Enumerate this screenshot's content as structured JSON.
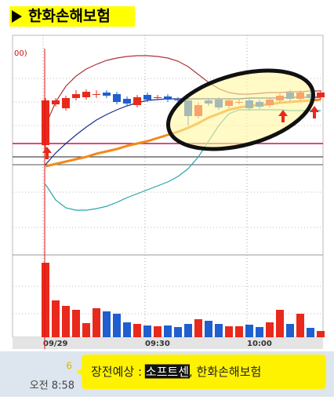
{
  "header": {
    "title": "한화손해보험"
  },
  "chart_data": {
    "type": "candlestick",
    "indicator_label": "00)",
    "categories": [
      "09/29",
      null,
      null,
      null,
      null,
      null,
      null,
      null,
      null,
      null,
      "09:30",
      null,
      null,
      null,
      null,
      null,
      null,
      null,
      null,
      null,
      "10:00",
      null,
      null,
      null,
      null,
      null,
      null,
      null
    ],
    "open": [
      135,
      187,
      182,
      195,
      196,
      200,
      202,
      200,
      194,
      186,
      199,
      196,
      197,
      193,
      192,
      172,
      192,
      193,
      185,
      190,
      192,
      190,
      186,
      192,
      202,
      194,
      200,
      196
    ],
    "high": [
      195,
      195,
      198,
      205,
      206,
      205,
      205,
      203,
      197,
      199,
      202,
      199,
      200,
      196,
      195,
      189,
      195,
      196,
      195,
      193,
      195,
      193,
      196,
      201,
      205,
      205,
      203,
      205
    ],
    "low": [
      130,
      184,
      179,
      192,
      193,
      195,
      195,
      187,
      185,
      183,
      190,
      193,
      190,
      189,
      160,
      169,
      185,
      180,
      182,
      187,
      179,
      181,
      183,
      189,
      191,
      191,
      192,
      193
    ],
    "close": [
      192,
      192,
      195,
      200,
      203,
      200,
      198,
      190,
      188,
      196,
      193,
      196,
      193,
      192,
      172,
      186,
      188,
      183,
      192,
      190,
      182,
      184,
      193,
      198,
      194,
      202,
      195,
      202
    ],
    "volume": [
      95,
      47,
      40,
      35,
      18,
      37,
      33,
      30,
      19,
      17,
      15,
      14,
      15,
      13,
      17,
      23,
      21,
      17,
      14,
      14,
      16,
      13,
      19,
      35,
      17,
      30,
      12,
      8
    ],
    "up_color": "#e8291b",
    "down_color": "#1f5fcf",
    "ylim": [
      0,
      260
    ],
    "volume_lim": [
      0,
      100
    ],
    "series": [
      {
        "color": "#f08a1c",
        "values": [
          108,
          111,
          114,
          117,
          120,
          124,
          127,
          130,
          134,
          137,
          140,
          144,
          148,
          152,
          157,
          163,
          170,
          175,
          180,
          183,
          185,
          186,
          187,
          189,
          190,
          191,
          192,
          193
        ]
      },
      {
        "color": "#1a2f8c",
        "values": [
          110,
          125,
          137,
          148,
          158,
          167,
          174,
          180,
          185,
          189,
          192,
          193,
          194,
          194,
          194,
          194,
          194,
          194,
          194,
          194,
          195,
          195,
          195,
          195,
          196,
          196,
          196,
          196
        ]
      },
      {
        "color": "#b0303a",
        "values": [
          160,
          190,
          210,
          223,
          232,
          238,
          243,
          246,
          248,
          249,
          249,
          248,
          246,
          242,
          235,
          225,
          215,
          207,
          202,
          200,
          200,
          201,
          202,
          202,
          203,
          203,
          204,
          204
        ]
      },
      {
        "color": "#2ba3a8",
        "values": [
          85,
          65,
          55,
          52,
          52,
          54,
          57,
          62,
          68,
          73,
          78,
          83,
          88,
          95,
          105,
          120,
          140,
          160,
          175,
          180,
          180,
          180,
          180,
          180,
          179,
          179,
          179,
          179
        ]
      }
    ],
    "hlines": [
      {
        "value": 137,
        "color": "#d0104a"
      },
      {
        "value": 120,
        "color": "#222222"
      },
      {
        "value": 110,
        "color": "#555555"
      }
    ],
    "grid": true
  },
  "notification": {
    "count": "6",
    "time": "오전 8:58",
    "prefix": "장전예상 : ",
    "highlight": "소프트센",
    "suffix": ", 한화손해보험"
  }
}
